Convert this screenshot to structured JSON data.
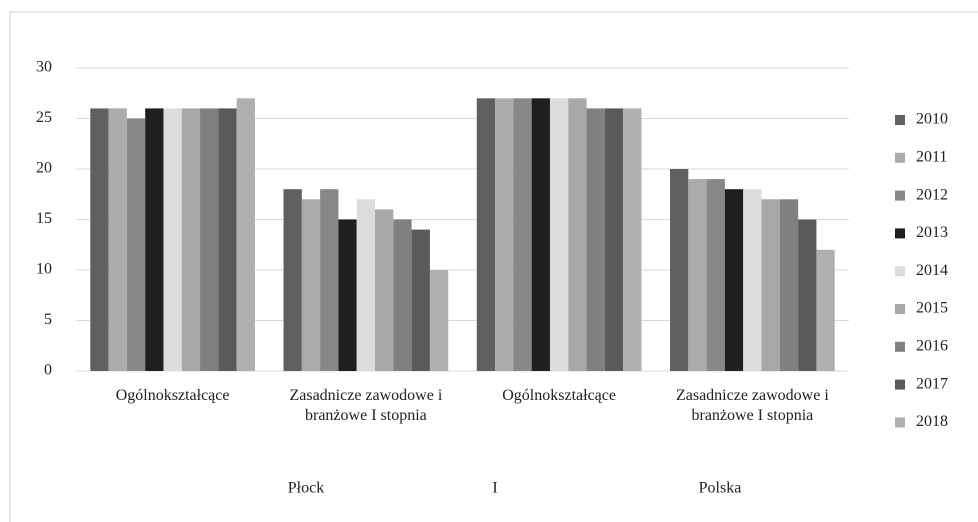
{
  "chart_data": {
    "type": "bar",
    "categories": [
      "Ogólnokształcące",
      "Zasadnicze zawodowe i branżowe I stopnia",
      "Ogólnokształcące",
      "Zasadnicze zawodowe i branżowe I stopnia"
    ],
    "annotations": [
      "Płock",
      "I",
      "Polska"
    ],
    "series": [
      {
        "name": "2010",
        "color": "#606060",
        "values": [
          26,
          18,
          27,
          20
        ]
      },
      {
        "name": "2011",
        "color": "#ababab",
        "values": [
          26,
          17,
          27,
          19
        ]
      },
      {
        "name": "2012",
        "color": "#878787",
        "values": [
          25,
          18,
          27,
          19
        ]
      },
      {
        "name": "2013",
        "color": "#1f1f1f",
        "values": [
          26,
          15,
          27,
          18
        ]
      },
      {
        "name": "2014",
        "color": "#dcdcdc",
        "values": [
          26,
          17,
          27,
          18
        ]
      },
      {
        "name": "2015",
        "color": "#a8a8a8",
        "values": [
          26,
          16,
          27,
          17
        ]
      },
      {
        "name": "2016",
        "color": "#808080",
        "values": [
          26,
          15,
          26,
          17
        ]
      },
      {
        "name": "2017",
        "color": "#5a5a5a",
        "values": [
          26,
          14,
          26,
          15
        ]
      },
      {
        "name": "2018",
        "color": "#b0b0b0",
        "values": [
          27,
          10,
          26,
          12
        ]
      }
    ],
    "ylim": [
      0,
      30
    ],
    "yticks": [
      0,
      5,
      10,
      15,
      20,
      25,
      30
    ],
    "grid": true,
    "legend": "right"
  }
}
